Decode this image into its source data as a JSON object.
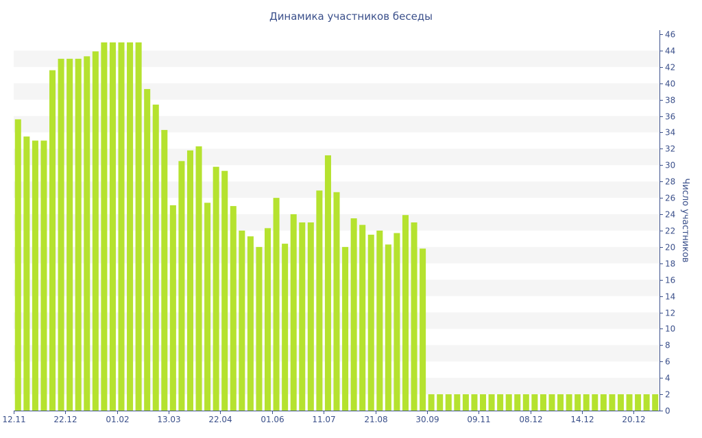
{
  "chart_data": {
    "type": "bar",
    "title": "Динамика участников беседы",
    "xlabel": "",
    "ylabel": "Число участников",
    "ylim": [
      0,
      46
    ],
    "y_ticks": [
      0,
      2,
      4,
      6,
      8,
      10,
      12,
      14,
      16,
      18,
      20,
      22,
      24,
      26,
      28,
      30,
      32,
      34,
      36,
      38,
      40,
      42,
      44,
      46
    ],
    "y_axis_side": "right",
    "grid": "alternating horizontal bands",
    "legend": "none",
    "x_tick_labels": [
      {
        "label": "12.11",
        "index": 0
      },
      {
        "label": "22.12",
        "index": 6
      },
      {
        "label": "01.02",
        "index": 12
      },
      {
        "label": "13.03",
        "index": 18
      },
      {
        "label": "22.04",
        "index": 24
      },
      {
        "label": "01.06",
        "index": 30
      },
      {
        "label": "11.07",
        "index": 36
      },
      {
        "label": "21.08",
        "index": 42
      },
      {
        "label": "30.09",
        "index": 48
      },
      {
        "label": "09.11",
        "index": 54
      },
      {
        "label": "08.12",
        "index": 60
      },
      {
        "label": "14.12",
        "index": 66
      },
      {
        "label": "20.12",
        "index": 72
      }
    ],
    "values": [
      35.6,
      33.5,
      33,
      33,
      41.6,
      43,
      43,
      43,
      43.3,
      43.9,
      45,
      45,
      45,
      45,
      45,
      39.3,
      37.4,
      34.3,
      25.1,
      30.5,
      31.8,
      32.3,
      25.4,
      29.8,
      29.3,
      25,
      22,
      21.3,
      20,
      22.3,
      26,
      20.4,
      24,
      23,
      23,
      26.9,
      31.2,
      26.7,
      20,
      23.5,
      22.7,
      21.5,
      22,
      20.3,
      21.7,
      23.9,
      23,
      19.8,
      2,
      2,
      2,
      2,
      2,
      2,
      2,
      2,
      2,
      2,
      2,
      2,
      2,
      2,
      2,
      2,
      2,
      2,
      2,
      2,
      2,
      2,
      2,
      2,
      2,
      2,
      2
    ],
    "bar_color": "#b5e22f",
    "band_color": "#f5f5f5",
    "text_color": "#3a4f8a",
    "axis_color": "#3a4f8a"
  }
}
